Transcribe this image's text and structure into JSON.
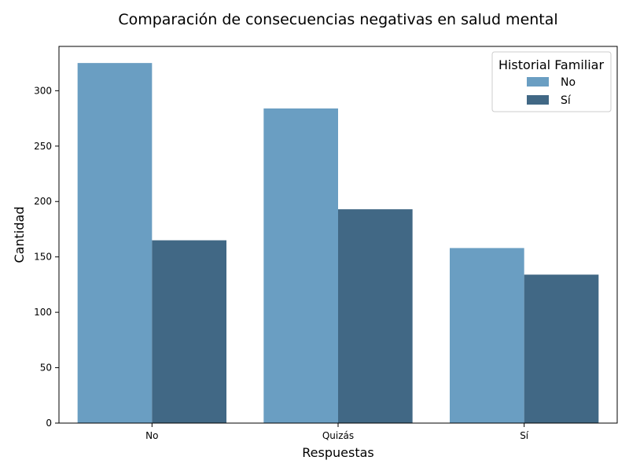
{
  "chart_data": {
    "type": "bar",
    "title": "Comparación de consecuencias negativas en salud mental",
    "xlabel": "Respuestas",
    "ylabel": "Cantidad",
    "categories": [
      "No",
      "Quizás",
      "Sí"
    ],
    "series": [
      {
        "name": "No",
        "values": [
          325,
          284,
          158
        ],
        "color": "#6a9ec2"
      },
      {
        "name": "Sí",
        "values": [
          165,
          193,
          134
        ],
        "color": "#416885"
      }
    ],
    "ylim": [
      0,
      340
    ],
    "yticks": [
      0,
      50,
      100,
      150,
      200,
      250,
      300
    ],
    "legend": {
      "title": "Historial Familiar",
      "placement": "top-right"
    },
    "grid": false
  }
}
